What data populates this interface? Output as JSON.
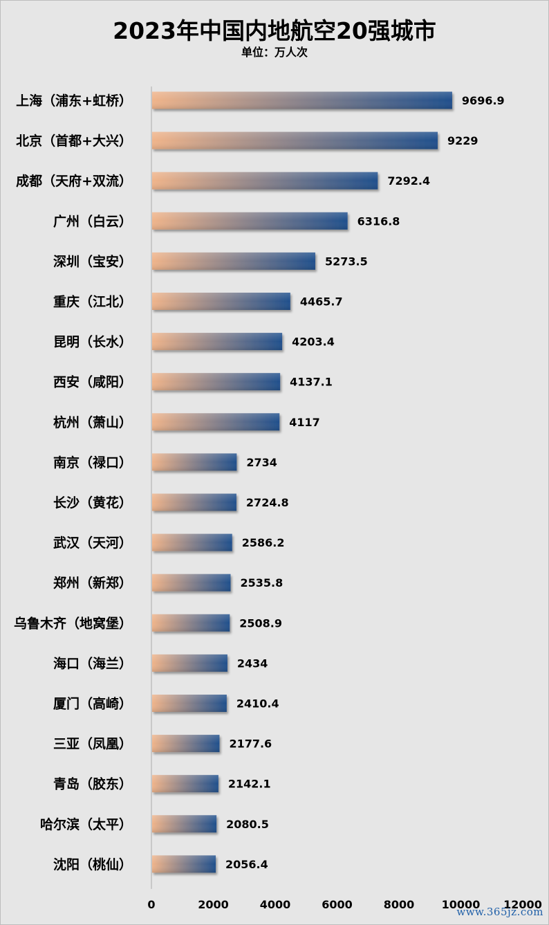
{
  "page": {
    "title": "2023年中国内地航空20强城市",
    "subtitle": "单位：万人次",
    "watermark": "www.365jz.com"
  },
  "colors": {
    "background": "#e6e6e6",
    "bar_start": "#f0b48a",
    "bar_end": "#1f4f8c",
    "axis": "#bfbfbf"
  },
  "chart_data": {
    "type": "bar",
    "orientation": "horizontal",
    "title": "2023年中国内地航空20强城市",
    "subtitle": "单位：万人次",
    "categories": [
      "上海（浦东+虹桥）",
      "北京（首都+大兴）",
      "成都（天府+双流）",
      "广州（白云）",
      "深圳（宝安）",
      "重庆（江北）",
      "昆明（长水）",
      "西安（咸阳）",
      "杭州（萧山）",
      "南京（禄口）",
      "长沙（黄花）",
      "武汉（天河）",
      "郑州（新郑）",
      "乌鲁木齐（地窝堡）",
      "海口（海兰）",
      "厦门（高崎）",
      "三亚（凤凰）",
      "青岛（胶东）",
      "哈尔滨（太平）",
      "沈阳（桃仙）"
    ],
    "values": [
      9696.9,
      9229,
      7292.4,
      6316.8,
      5273.5,
      4465.7,
      4203.4,
      4137.1,
      4117,
      2734,
      2724.8,
      2586.2,
      2535.8,
      2508.9,
      2434,
      2410.4,
      2177.6,
      2142.1,
      2080.5,
      2056.4
    ],
    "value_labels": [
      "9696.9",
      "9229",
      "7292.4",
      "6316.8",
      "5273.5",
      "4465.7",
      "4203.4",
      "4137.1",
      "4117",
      "2734",
      "2724.8",
      "2586.2",
      "2535.8",
      "2508.9",
      "2434",
      "2410.4",
      "2177.6",
      "2142.1",
      "2080.5",
      "2056.4"
    ],
    "x_ticks": [
      "0",
      "2000",
      "4000",
      "6000",
      "8000",
      "10000",
      "12000"
    ],
    "xlim": [
      0,
      12000
    ],
    "xlabel": "",
    "ylabel": "",
    "grid": false,
    "legend": "none"
  }
}
